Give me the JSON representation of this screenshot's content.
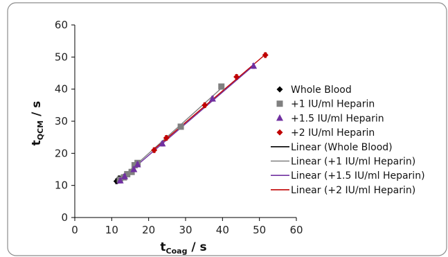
{
  "chart_data": {
    "type": "scatter",
    "xlabel": {
      "main": "t",
      "sub": "Coag",
      "suffix": " / s"
    },
    "ylabel": {
      "main": "t",
      "sub": "QCM",
      "suffix": " / s"
    },
    "xlim": [
      0,
      60
    ],
    "ylim": [
      0,
      60
    ],
    "xticks": [
      0,
      10,
      20,
      30,
      40,
      50,
      60
    ],
    "yticks": [
      0,
      10,
      20,
      30,
      40,
      50,
      60
    ],
    "grid": false,
    "legend_position": "right",
    "series": [
      {
        "name": "Whole Blood",
        "marker": "diamond",
        "color": "#000000",
        "points": [
          [
            11.3,
            11.3
          ],
          [
            11.6,
            11.5
          ],
          [
            12.0,
            12.2
          ],
          [
            12.5,
            11.8
          ],
          [
            13.0,
            12.6
          ]
        ]
      },
      {
        "name": "+1 IU/ml Heparin",
        "marker": "square",
        "color": "#808080",
        "points": [
          [
            12.2,
            11.8
          ],
          [
            13.3,
            12.5
          ],
          [
            14.2,
            13.5
          ],
          [
            15.4,
            14.2
          ],
          [
            16.2,
            16.3
          ],
          [
            17.0,
            17.0
          ],
          [
            28.7,
            28.3
          ],
          [
            39.7,
            40.8
          ]
        ]
      },
      {
        "name": "+1.5 IU/ml Heparin",
        "marker": "triangle",
        "color": "#7030A0",
        "points": [
          [
            12.3,
            11.5
          ],
          [
            13.5,
            12.8
          ],
          [
            16.0,
            15.0
          ],
          [
            17.0,
            16.5
          ],
          [
            23.7,
            23.0
          ],
          [
            37.3,
            37.0
          ],
          [
            48.4,
            47.2
          ]
        ]
      },
      {
        "name": "+2 IU/ml Heparin",
        "marker": "diamond",
        "color": "#C00000",
        "points": [
          [
            21.5,
            21.0
          ],
          [
            24.8,
            24.8
          ],
          [
            35.2,
            35.0
          ],
          [
            43.8,
            43.8
          ],
          [
            51.6,
            50.6
          ]
        ]
      }
    ],
    "trendlines": [
      {
        "name": "Linear (Whole Blood)",
        "color": "#000000",
        "from": [
          11.0,
          11.0
        ],
        "to": [
          13.0,
          12.8
        ]
      },
      {
        "name": "Linear (+1 IU/ml Heparin)",
        "color": "#808080",
        "from": [
          12.0,
          11.7
        ],
        "to": [
          40.0,
          40.6
        ]
      },
      {
        "name": "Linear (+1.5 IU/ml Heparin)",
        "color": "#7030A0",
        "from": [
          12.0,
          11.5
        ],
        "to": [
          48.5,
          47.4
        ]
      },
      {
        "name": "Linear (+2 IU/ml Heparin)",
        "color": "#C00000",
        "from": [
          21.0,
          20.8
        ],
        "to": [
          52.0,
          51.2
        ]
      }
    ]
  }
}
